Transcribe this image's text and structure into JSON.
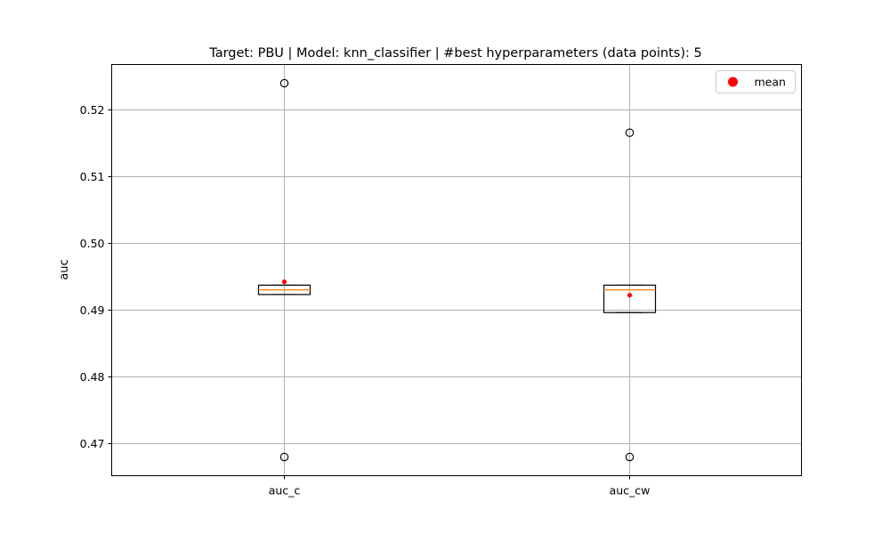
{
  "chart_data": {
    "type": "boxplot",
    "title": "Target: PBU | Model: knn_classifier | #best hyperparameters (data points): 5",
    "xlabel": "",
    "ylabel": "auc",
    "ylim": [
      0.4652,
      0.5267
    ],
    "yticks": [
      0.47,
      0.48,
      0.49,
      0.5,
      0.51,
      0.52
    ],
    "ytick_labels": [
      "0.47",
      "0.48",
      "0.49",
      "0.50",
      "0.51",
      "0.52"
    ],
    "grid": true,
    "legend": {
      "location": "top-right",
      "entries": [
        {
          "label": "mean",
          "color": "#ff0000"
        }
      ]
    },
    "categories": [
      "auc_c",
      "auc_cw"
    ],
    "boxes": [
      {
        "name": "auc_c",
        "whisker_low": 0.4923,
        "q1": 0.4923,
        "median": 0.493,
        "q3": 0.4937,
        "whisker_high": 0.4937,
        "mean": 0.4942,
        "outliers": [
          0.5239,
          0.468
        ]
      },
      {
        "name": "auc_cw",
        "whisker_low": 0.4896,
        "q1": 0.4896,
        "median": 0.493,
        "q3": 0.4937,
        "whisker_high": 0.4937,
        "mean": 0.4922,
        "outliers": [
          0.5165,
          0.468
        ]
      }
    ],
    "colors": {
      "box": "#000000",
      "median": "#ff7f0e",
      "mean": "#ff0000",
      "grid": "#b0b0b0"
    }
  }
}
